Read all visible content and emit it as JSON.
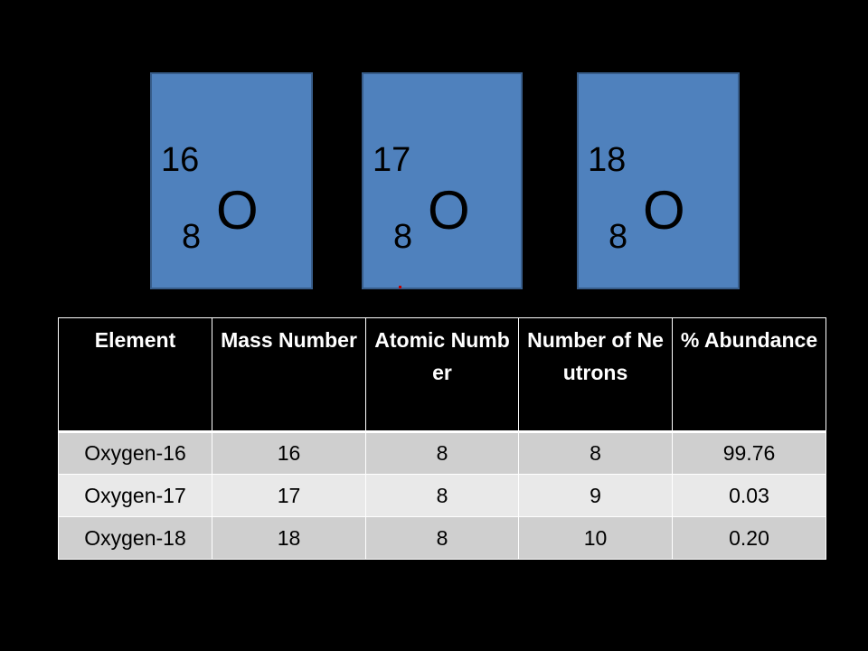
{
  "isotopes": [
    {
      "mass_number": "16",
      "atomic_number": "8",
      "symbol": "O"
    },
    {
      "mass_number": "17",
      "atomic_number": "8",
      "symbol": "O"
    },
    {
      "mass_number": "18",
      "atomic_number": "8",
      "symbol": "O"
    }
  ],
  "colors": {
    "card_fill": "#4f81bd",
    "card_border": "#385d8a",
    "header_bg": "#000000",
    "row_odd": "#cfcfcf",
    "row_even": "#e9e9e9"
  },
  "table": {
    "headers": [
      "Element",
      "Mass Number",
      "Atomic Number",
      "Number of Neutrons",
      "% Abundance"
    ],
    "rows": [
      [
        "Oxygen-16",
        "16",
        "8",
        "8",
        "99.76"
      ],
      [
        "Oxygen-17",
        "17",
        "8",
        "9",
        "0.03"
      ],
      [
        "Oxygen-18",
        "18",
        "8",
        "10",
        "0.20"
      ]
    ]
  }
}
